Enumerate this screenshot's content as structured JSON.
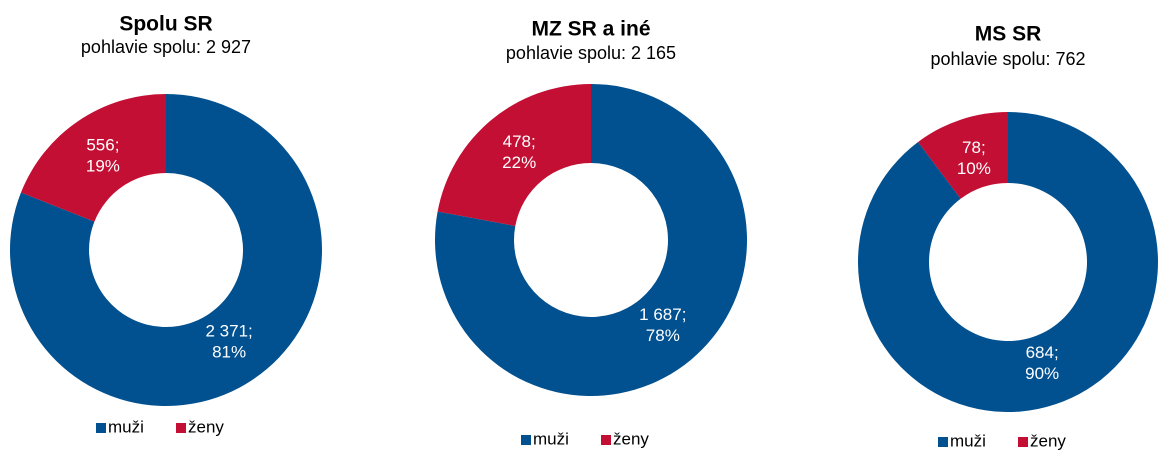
{
  "chart_data": [
    {
      "type": "pie",
      "title": "Spolu SR",
      "subtitle": "pohlavie spolu: 2 927",
      "categories": [
        "muži",
        "ženy"
      ],
      "values": [
        2371,
        556
      ],
      "value_labels": [
        [
          "2 371;",
          "81%"
        ],
        [
          "556;",
          "19%"
        ]
      ],
      "colors": [
        "#01508f",
        "#c40f34"
      ]
    },
    {
      "type": "pie",
      "title": "MZ SR a iné",
      "subtitle": "pohlavie spolu: 2 165",
      "categories": [
        "muži",
        "ženy"
      ],
      "values": [
        1687,
        478
      ],
      "value_labels": [
        [
          "1 687;",
          "78%"
        ],
        [
          "478;",
          "22%"
        ]
      ],
      "colors": [
        "#01508f",
        "#c40f34"
      ]
    },
    {
      "type": "pie",
      "title": "MS SR",
      "subtitle": "pohlavie spolu: 762",
      "categories": [
        "muži",
        "ženy"
      ],
      "values": [
        684,
        78
      ],
      "value_labels": [
        [
          "684;",
          "90%"
        ],
        [
          "78;",
          "10%"
        ]
      ],
      "colors": [
        "#01508f",
        "#c40f34"
      ]
    }
  ]
}
